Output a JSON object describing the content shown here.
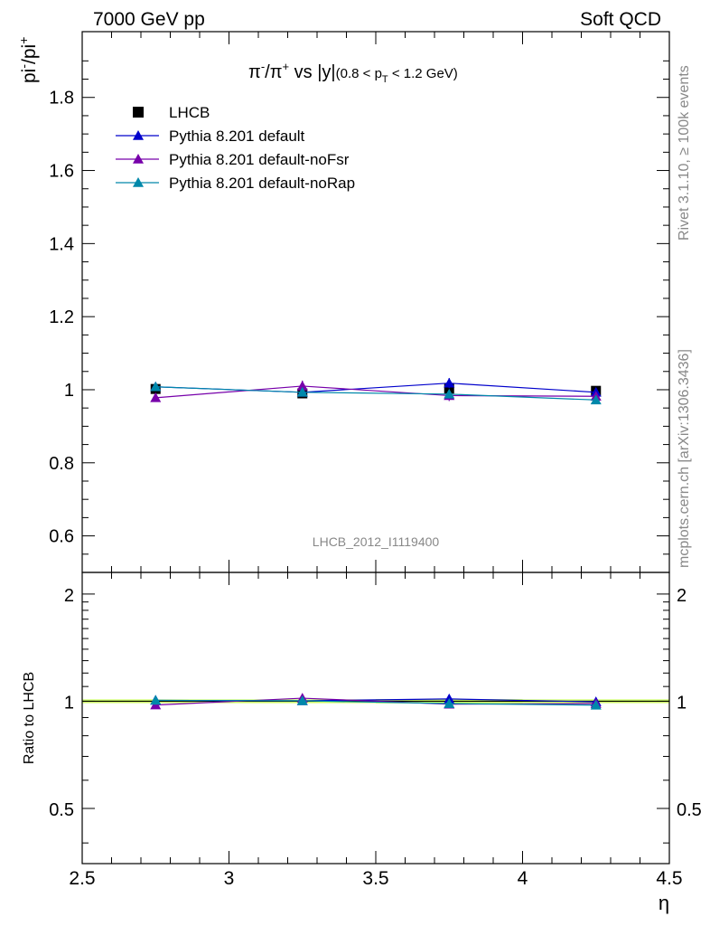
{
  "header": {
    "left": "7000 GeV pp",
    "right": "Soft QCD"
  },
  "side_labels": {
    "rivet": "Rivet 3.1.10, ≥ 100k events",
    "mcplots": "mcplots.cern.ch [arXiv:1306.3436]"
  },
  "watermark": "LHCB_2012_I1119400",
  "colors": {
    "data": "#000000",
    "default": "#0000cc",
    "noFsr": "#7700aa",
    "noRap": "#0088aa",
    "band": "#ccff66"
  },
  "chart_data": [
    {
      "type": "line",
      "title": "π⁻/π⁺ vs |y| (0.8 < p_T < 1.2 GeV)",
      "xlabel": "η",
      "ylabel": "pi-/pi+",
      "xlim": [
        2.5,
        4.5
      ],
      "ylim": [
        0.5,
        1.98
      ],
      "x_ticks": [
        "2.5",
        "3",
        "3.5",
        "4",
        "4.5"
      ],
      "y_ticks": [
        "0.6",
        "0.8",
        "1",
        "1.2",
        "1.4",
        "1.6",
        "1.8"
      ],
      "legend_position": "top-left",
      "x": [
        2.75,
        3.25,
        3.75,
        4.25
      ],
      "series": [
        {
          "name": "LHCB",
          "color_key": "data",
          "marker": "square",
          "values": [
            1.002,
            0.99,
            1.003,
            0.997
          ],
          "errors": [
            0.012,
            0.012,
            0.014,
            0.012
          ]
        },
        {
          "name": "Pythia 8.201 default",
          "color_key": "default",
          "marker": "triangle",
          "values": [
            1.008,
            0.993,
            1.018,
            0.993
          ],
          "errors": [
            0.011,
            0.011,
            0.014,
            0.01
          ]
        },
        {
          "name": "Pythia 8.201 default-noFsr",
          "color_key": "noFsr",
          "marker": "triangle",
          "values": [
            0.978,
            1.01,
            0.984,
            0.982
          ],
          "errors": [
            0.01,
            0.015,
            0.015,
            0.01
          ]
        },
        {
          "name": "Pythia 8.201 default-noRap",
          "color_key": "noRap",
          "marker": "triangle",
          "values": [
            1.008,
            0.993,
            0.988,
            0.972
          ],
          "errors": [
            0.01,
            0.011,
            0.011,
            0.01
          ]
        }
      ]
    },
    {
      "type": "line",
      "ylabel": "Ratio to LHCB",
      "xlabel": "η",
      "xlim": [
        2.5,
        4.5
      ],
      "ylim": [
        0.35,
        2.3
      ],
      "log_y": true,
      "y_ticks": [
        "0.5",
        "1",
        "2"
      ],
      "x": [
        2.75,
        3.25,
        3.75,
        4.25
      ],
      "series": [
        {
          "name": "Pythia 8.201 default",
          "color_key": "default",
          "values": [
            1.006,
            1.003,
            1.015,
            0.996
          ]
        },
        {
          "name": "Pythia 8.201 default-noFsr",
          "color_key": "noFsr",
          "values": [
            0.976,
            1.02,
            0.981,
            0.985
          ]
        },
        {
          "name": "Pythia 8.201 default-noRap",
          "color_key": "noRap",
          "values": [
            1.006,
            1.003,
            0.985,
            0.975
          ]
        }
      ]
    }
  ]
}
